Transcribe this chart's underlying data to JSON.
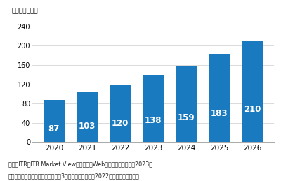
{
  "years": [
    "2020",
    "2021",
    "2022",
    "2023",
    "2024",
    "2025",
    "2026"
  ],
  "values": [
    87,
    103,
    120,
    138,
    159,
    183,
    210
  ],
  "bar_color": "#1a7abf",
  "label_color": "#ffffff",
  "label_fontsize": 8.5,
  "ylabel_top": "（単位：億円）",
  "yticks": [
    0,
    40,
    80,
    120,
    160,
    200,
    240
  ],
  "ylim": [
    0,
    248
  ],
  "footnote1": "出典：ITR『ITR Market View：メール／Webマーケティング市场2023』",
  "footnote2": "＊ベンダーの売上金額を対象とし「3月期ベースで换算」2022年度以降は予測値。",
  "background_color": "#ffffff",
  "grid_color": "#cccccc",
  "spine_color": "#aaaaaa"
}
